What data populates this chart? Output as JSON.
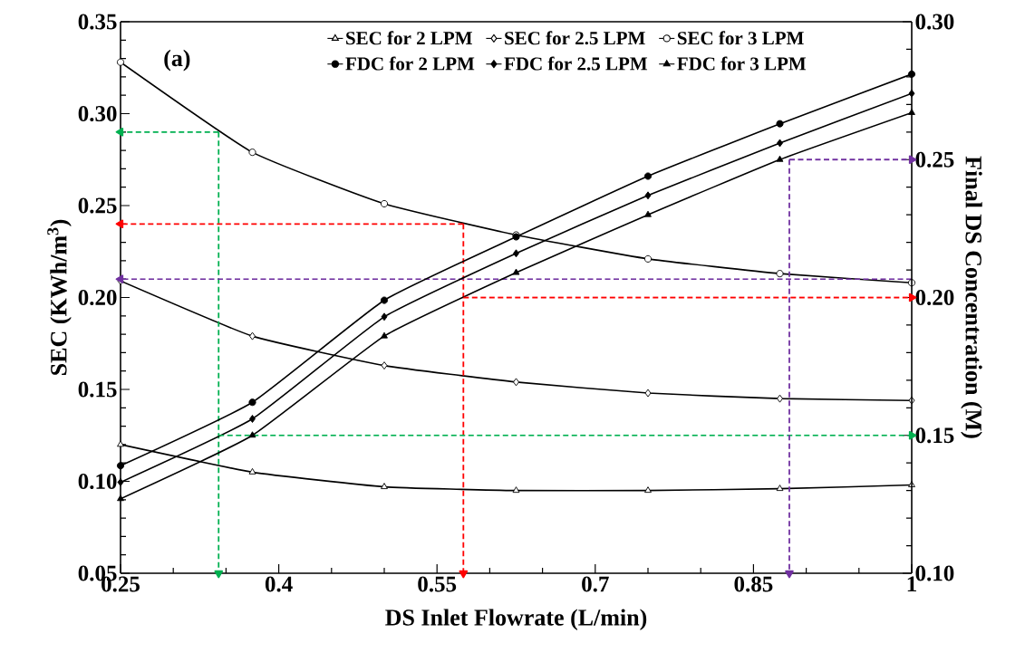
{
  "chart_data": {
    "type": "line",
    "xlabel": "DS Inlet Flowrate (L/min)",
    "ylabel": "SEC (KWh/m$^{3}$)",
    "y2label": "Final DS Concentration (M)",
    "annotations": [
      "(a)"
    ],
    "xlim": [
      0.25,
      1.0
    ],
    "xticks": [
      0.25,
      0.4,
      0.55,
      0.7,
      0.85,
      1
    ],
    "ylim": [
      0.05,
      0.35
    ],
    "yticks": [
      {
        "value": 0.05,
        "label": "0.05"
      },
      {
        "value": 0.1,
        "label": "0.10"
      },
      {
        "value": 0.15,
        "label": "0.15"
      },
      {
        "value": 0.2,
        "label": "0.20"
      },
      {
        "value": 0.25,
        "label": "0.25"
      },
      {
        "value": 0.3,
        "label": "0.30"
      },
      {
        "value": 0.35,
        "label": "0.35"
      }
    ],
    "y2lim": [
      0.1,
      0.3
    ],
    "y2ticks": [
      {
        "value": 0.1,
        "label": "0.10"
      },
      {
        "value": 0.15,
        "label": "0.15"
      },
      {
        "value": 0.2,
        "label": "0.20"
      },
      {
        "value": 0.25,
        "label": "0.25"
      },
      {
        "value": 0.3,
        "label": "0.30"
      }
    ],
    "x": [
      0.25,
      0.375,
      0.5,
      0.625,
      0.75,
      0.875,
      1.0
    ],
    "legend": "top",
    "grid": false,
    "series": [
      {
        "name": "SEC for 2 LPM",
        "color": "#000000",
        "marker": "triangle",
        "values": [
          0.12,
          0.105,
          0.097,
          0.095,
          0.095,
          0.096,
          0.098
        ]
      },
      {
        "name": "SEC for 2.5 LPM",
        "color": "#000000",
        "marker": "diamond",
        "values": [
          0.209,
          0.179,
          0.163,
          0.154,
          0.148,
          0.145,
          0.144
        ]
      },
      {
        "name": "SEC for 3 LPM",
        "color": "#000000",
        "marker": "circle",
        "values": [
          0.328,
          0.279,
          0.251,
          0.234,
          0.221,
          0.213,
          0.208
        ]
      },
      {
        "name": "FDC for 2 LPM",
        "color": "#000000",
        "marker": "circle",
        "axis": "y2",
        "values": [
          0.139,
          0.162,
          0.199,
          0.222,
          0.244,
          0.263,
          0.281
        ]
      },
      {
        "name": "FDC for 2.5 LPM",
        "color": "#000000",
        "marker": "diamond",
        "axis": "y2",
        "values": [
          0.133,
          0.156,
          0.193,
          0.216,
          0.237,
          0.256,
          0.274
        ]
      },
      {
        "name": "FDC for 3 LPM",
        "color": "#000000",
        "marker": "triangle",
        "axis": "y2",
        "values": [
          0.127,
          0.15,
          0.186,
          0.209,
          0.23,
          0.25,
          0.267
        ]
      },
      {
        "color": "#00b050",
        "line_style": "dashed",
        "x": [
          0.343,
          0.25
        ],
        "values": [
          0.29,
          0.29
        ]
      },
      {
        "color": "#00b050",
        "line_style": "dashed",
        "x": [
          0.343,
          0.343
        ],
        "values": [
          0.29,
          0.05
        ]
      },
      {
        "color": "#00b050",
        "line_style": "dashed",
        "axis": "y2",
        "x": [
          0.343,
          1.0
        ],
        "values": [
          0.15,
          0.15
        ]
      },
      {
        "color": "#ff0000",
        "line_style": "dashed",
        "x": [
          0.575,
          0.25
        ],
        "values": [
          0.24,
          0.24
        ]
      },
      {
        "color": "#ff0000",
        "line_style": "dashed",
        "x": [
          0.575,
          0.575
        ],
        "values": [
          0.24,
          0.05
        ]
      },
      {
        "color": "#ff0000",
        "line_style": "dashed",
        "axis": "y2",
        "x": [
          0.575,
          1.0
        ],
        "values": [
          0.2,
          0.2
        ]
      },
      {
        "color": "#7030a0",
        "line_style": "dashed",
        "x": [
          1.0,
          0.25
        ],
        "values": [
          0.21,
          0.21
        ]
      },
      {
        "color": "#7030a0",
        "line_style": "dashed",
        "axis": "y2",
        "x": [
          0.884,
          0.884
        ],
        "values": [
          0.25,
          0.1
        ]
      },
      {
        "color": "#7030a0",
        "line_style": "dashed",
        "axis": "y2",
        "x": [
          0.884,
          1.0
        ],
        "values": [
          0.25,
          0.25
        ]
      }
    ]
  }
}
